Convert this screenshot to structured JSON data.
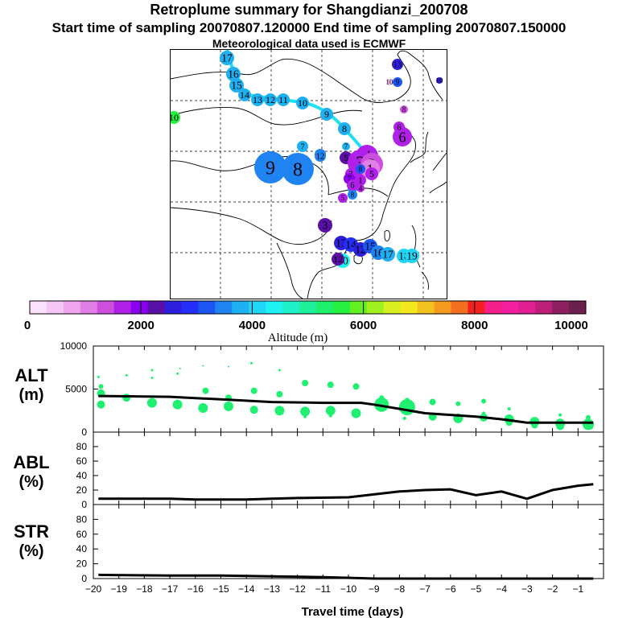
{
  "title": {
    "line1": "Retroplume summary for Shangdianzi_200708",
    "line2": "Start time of sampling 20070807.120000      End time of sampling 20070807.150000",
    "line3": "Meteorological data used is ECMWF"
  },
  "colorbar": {
    "label": "Altitude (m)",
    "ticks": [
      "0",
      "2000",
      "4000",
      "6000",
      "8000",
      "10000"
    ],
    "range": [
      0,
      10000
    ],
    "colors": [
      "#fbe1fb",
      "#f6c6f6",
      "#efa6ef",
      "#e27fe6",
      "#cc4fe0",
      "#b020e8",
      "#8b00f0",
      "#5a0fa8",
      "#2e1fdc",
      "#2430f8",
      "#1b55f2",
      "#1f84f2",
      "#1fb0f2",
      "#1fd6f6",
      "#1ff2f2",
      "#1ff0c8",
      "#1ff09a",
      "#1ff06a",
      "#27f040",
      "#63f01f",
      "#a0f01f",
      "#d8f01f",
      "#f4e81f",
      "#f4c21f",
      "#f49a1f",
      "#f46f1f",
      "#f42020",
      "#f41f8a",
      "#f41f9e",
      "#e01f90",
      "#bb1f7a",
      "#8c1f60",
      "#6a1f4c"
    ]
  },
  "map_points": [
    {
      "label": "17",
      "alt": 3800,
      "size": 9
    },
    {
      "label": "16",
      "alt": 3800,
      "size": 9
    },
    {
      "label": "15",
      "alt": 3800,
      "size": 9
    },
    {
      "label": "14",
      "alt": 3800,
      "size": 8
    },
    {
      "label": "13",
      "alt": 3800,
      "size": 8
    },
    {
      "label": "12",
      "alt": 3800,
      "size": 8
    },
    {
      "label": "11",
      "alt": 3800,
      "size": 8
    },
    {
      "label": "10",
      "alt": 3800,
      "size": 8
    },
    {
      "label": "9",
      "alt": 3800,
      "size": 8
    },
    {
      "label": "8",
      "alt": 3800,
      "size": 8
    },
    {
      "label": "7",
      "alt": 3800,
      "size": 5
    },
    {
      "label": "10",
      "alt": 5700,
      "size": 8
    },
    {
      "label": "9",
      "alt": 3500,
      "size": 20
    },
    {
      "label": "8",
      "alt": 3500,
      "size": 20
    },
    {
      "label": "7",
      "alt": 3800,
      "size": 7
    },
    {
      "label": "11",
      "alt": 3600,
      "size": 7
    },
    {
      "label": "12",
      "alt": 3600,
      "size": 7
    },
    {
      "label": "9",
      "alt": 3400,
      "size": 6
    },
    {
      "label": "8",
      "alt": 3400,
      "size": 6
    },
    {
      "label": "10",
      "alt": 500,
      "size": 4
    },
    {
      "label": "6",
      "alt": 1800,
      "size": 12
    },
    {
      "label": "6",
      "alt": 1800,
      "size": 7
    },
    {
      "label": "5",
      "alt": 2400,
      "size": 8
    },
    {
      "label": "4",
      "alt": 1800,
      "size": 14
    },
    {
      "label": "3",
      "alt": 1600,
      "size": 16
    },
    {
      "label": "2",
      "alt": 1400,
      "size": 14
    },
    {
      "label": "1",
      "alt": 1000,
      "size": 12
    },
    {
      "label": "5",
      "alt": 1700,
      "size": 8
    },
    {
      "label": "3",
      "alt": 1600,
      "size": 7
    },
    {
      "label": "2",
      "alt": 1600,
      "size": 7
    },
    {
      "label": "1",
      "alt": 1600,
      "size": 7
    },
    {
      "label": "5",
      "alt": 1700,
      "size": 6
    },
    {
      "label": "4",
      "alt": 1700,
      "size": 5
    },
    {
      "label": "3",
      "alt": 2200,
      "size": 9
    },
    {
      "label": "13",
      "alt": 2700,
      "size": 9
    },
    {
      "label": "14",
      "alt": 2900,
      "size": 9
    },
    {
      "label": "12",
      "alt": 2500,
      "size": 9
    },
    {
      "label": "15",
      "alt": 3200,
      "size": 9
    },
    {
      "label": "16",
      "alt": 3500,
      "size": 9
    },
    {
      "label": "17",
      "alt": 3800,
      "size": 9
    },
    {
      "label": "18",
      "alt": 4100,
      "size": 9
    },
    {
      "label": "19",
      "alt": 4200,
      "size": 9
    },
    {
      "label": "20",
      "alt": 4300,
      "size": 9
    },
    {
      "label": "12",
      "alt": 2300,
      "size": 8
    },
    {
      "label": "13",
      "alt": 2500,
      "size": 7
    },
    {
      "label": "8",
      "alt": 1400,
      "size": 5
    },
    {
      "label": "9",
      "alt": 3300,
      "size": 6
    },
    {
      "label": "8",
      "alt": 3200,
      "size": 6
    },
    {
      "label": "7",
      "alt": 2000,
      "size": 7
    },
    {
      "label": "6",
      "alt": 1800,
      "size": 7
    },
    {
      "label": "10",
      "alt": 2600,
      "size": 4
    }
  ],
  "chart_data": [
    {
      "type": "scatter",
      "title": "ALT",
      "ylabel": "ALT (m)",
      "label": "ALT",
      "unit": "(m)",
      "xlabel": "Travel time (days)",
      "xlim": [
        -20,
        0
      ],
      "ylim": [
        0,
        10000
      ],
      "yticks": [
        "0",
        "5000",
        "10000"
      ],
      "xticks": [
        "-20",
        "-19",
        "-18",
        "-17",
        "-16",
        "-15",
        "-14",
        "-13",
        "-12",
        "-11",
        "-10",
        "-9",
        "-8",
        "-7",
        "-6",
        "-5",
        "-4",
        "-3",
        "-2",
        "-1"
      ],
      "median_line": {
        "x": [
          -19.8,
          -17.0,
          -15.0,
          -13.0,
          -11.0,
          -9.5,
          -9.0,
          -8.0,
          -7.0,
          -6.0,
          -5.0,
          -4.0,
          -3.0,
          -2.0,
          -1.0,
          -0.4
        ],
        "y": [
          4200,
          4100,
          3800,
          3500,
          3400,
          3400,
          3200,
          2700,
          2200,
          2000,
          1800,
          1500,
          1100,
          1100,
          1100,
          1100
        ]
      },
      "points": [
        {
          "x": -19.7,
          "y": 5300,
          "s": 3
        },
        {
          "x": -19.7,
          "y": 4500,
          "s": 5
        },
        {
          "x": -19.7,
          "y": 3200,
          "s": 5
        },
        {
          "x": -19.8,
          "y": 6400,
          "s": 1.5
        },
        {
          "x": -18.7,
          "y": 4000,
          "s": 5
        },
        {
          "x": -18.7,
          "y": 6600,
          "s": 1.5
        },
        {
          "x": -17.7,
          "y": 3400,
          "s": 6
        },
        {
          "x": -17.7,
          "y": 7200,
          "s": 1.5
        },
        {
          "x": -17.7,
          "y": 6300,
          "s": 1.5
        },
        {
          "x": -16.7,
          "y": 3200,
          "s": 6
        },
        {
          "x": -16.7,
          "y": 6800,
          "s": 1.5
        },
        {
          "x": -16.6,
          "y": 7400,
          "s": 1
        },
        {
          "x": -15.7,
          "y": 2800,
          "s": 6
        },
        {
          "x": -15.6,
          "y": 4800,
          "s": 4
        },
        {
          "x": -15.7,
          "y": 7700,
          "s": 1
        },
        {
          "x": -14.7,
          "y": 3000,
          "s": 6
        },
        {
          "x": -14.7,
          "y": 4000,
          "s": 4
        },
        {
          "x": -14.7,
          "y": 7600,
          "s": 1
        },
        {
          "x": -13.7,
          "y": 2600,
          "s": 5
        },
        {
          "x": -13.7,
          "y": 4800,
          "s": 4
        },
        {
          "x": -13.8,
          "y": 8000,
          "s": 1.5
        },
        {
          "x": -12.7,
          "y": 2500,
          "s": 6
        },
        {
          "x": -12.7,
          "y": 4400,
          "s": 4
        },
        {
          "x": -12.7,
          "y": 7200,
          "s": 1.5
        },
        {
          "x": -11.7,
          "y": 2400,
          "s": 6
        },
        {
          "x": -11.7,
          "y": 5700,
          "s": 4
        },
        {
          "x": -11.7,
          "y": 1800,
          "s": 2
        },
        {
          "x": -10.7,
          "y": 2500,
          "s": 6
        },
        {
          "x": -10.7,
          "y": 5500,
          "s": 4
        },
        {
          "x": -10.7,
          "y": 1900,
          "s": 2
        },
        {
          "x": -9.7,
          "y": 2200,
          "s": 6
        },
        {
          "x": -9.7,
          "y": 5300,
          "s": 4
        },
        {
          "x": -9.7,
          "y": 1800,
          "s": 2
        },
        {
          "x": -8.7,
          "y": 3200,
          "s": 9
        },
        {
          "x": -8.7,
          "y": 4000,
          "s": 3
        },
        {
          "x": -7.7,
          "y": 2900,
          "s": 10
        },
        {
          "x": -7.7,
          "y": 3700,
          "s": 3
        },
        {
          "x": -7.8,
          "y": 1600,
          "s": 2
        },
        {
          "x": -6.7,
          "y": 3500,
          "s": 4
        },
        {
          "x": -6.7,
          "y": 1800,
          "s": 5
        },
        {
          "x": -5.7,
          "y": 3300,
          "s": 3
        },
        {
          "x": -5.7,
          "y": 1600,
          "s": 6
        },
        {
          "x": -4.7,
          "y": 3600,
          "s": 3
        },
        {
          "x": -4.7,
          "y": 1700,
          "s": 5
        },
        {
          "x": -4.7,
          "y": 2200,
          "s": 2
        },
        {
          "x": -3.7,
          "y": 1500,
          "s": 6
        },
        {
          "x": -3.7,
          "y": 1100,
          "s": 4
        },
        {
          "x": -3.7,
          "y": 2700,
          "s": 2
        },
        {
          "x": -2.7,
          "y": 1200,
          "s": 6
        },
        {
          "x": -2.7,
          "y": 800,
          "s": 4
        },
        {
          "x": -1.7,
          "y": 1000,
          "s": 6
        },
        {
          "x": -1.7,
          "y": 700,
          "s": 5
        },
        {
          "x": -1.7,
          "y": 2000,
          "s": 2
        },
        {
          "x": -0.6,
          "y": 900,
          "s": 7
        },
        {
          "x": -0.6,
          "y": 1700,
          "s": 3
        },
        {
          "x": -0.5,
          "y": 600,
          "s": 3
        }
      ]
    },
    {
      "type": "line",
      "title": "ABL",
      "ylabel": "ABL (%)",
      "label": "ABL",
      "unit": "(%)",
      "xlim": [
        -20,
        0
      ],
      "ylim": [
        0,
        100
      ],
      "yticks": [
        "0",
        "20",
        "40",
        "60",
        "80"
      ],
      "x": [
        -19.8,
        -18.0,
        -17.0,
        -16.0,
        -14.0,
        -13.0,
        -12.0,
        -10.0,
        -9.0,
        -8.0,
        -7.0,
        -6.0,
        -5.0,
        -4.0,
        -3.0,
        -2.0,
        -1.0,
        -0.4
      ],
      "y": [
        8,
        8,
        8,
        7,
        7,
        8,
        9,
        10,
        14,
        18,
        20,
        21,
        13,
        18,
        8,
        20,
        26,
        28
      ]
    },
    {
      "type": "line",
      "title": "STR",
      "ylabel": "STR (%)",
      "label": "STR",
      "unit": "(%)",
      "xlim": [
        -20,
        0
      ],
      "ylim": [
        0,
        100
      ],
      "yticks": [
        "0",
        "20",
        "40",
        "60",
        "80"
      ],
      "x": [
        -19.8,
        -17.0,
        -15.0,
        -13.0,
        -11.0,
        -9.5,
        -9.0,
        -5.0,
        -1.0,
        -0.4
      ],
      "y": [
        5,
        4,
        4,
        3,
        2,
        0.5,
        0,
        0,
        0,
        0
      ]
    }
  ]
}
